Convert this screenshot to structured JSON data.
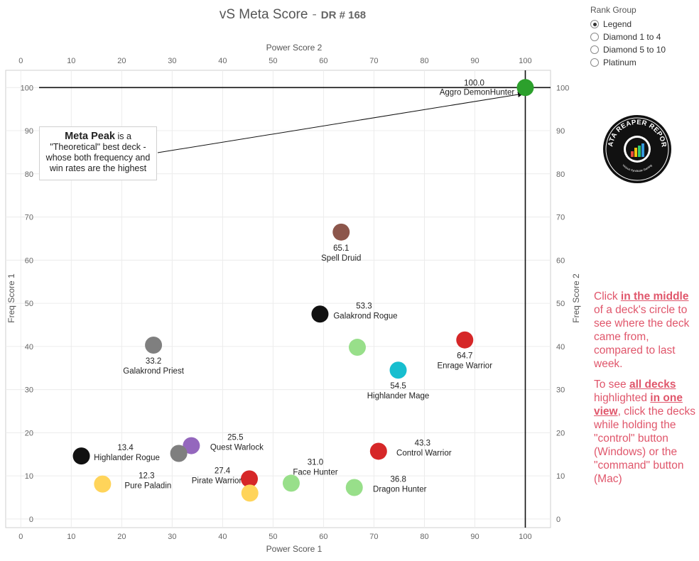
{
  "title": {
    "main": "vS Meta Score",
    "separator": "-",
    "sub": "DR # 168"
  },
  "filter": {
    "title": "Rank Group",
    "options": [
      "Legend",
      "Diamond 1 to 4",
      "Diamond 5 to 10",
      "Platinum"
    ],
    "selected": "Legend"
  },
  "annotation": {
    "strong": "Meta Peak",
    "text1": " is a",
    "text2": "\"Theoretical\" best deck -",
    "text3": "whose both frequency and",
    "text4": "win rates are the highest"
  },
  "logo": {
    "text_top": "DATA REAPER REPORT",
    "text_bottom": "Vicious Syndicate Gaming"
  },
  "instructions": {
    "p1_a": "Click ",
    "p1_b": "in the middle",
    "p1_c": " of a deck's circle to see where the deck came from, compared to last week.",
    "p2_a": "To see ",
    "p2_b": "all decks",
    "p2_c": " highlighted ",
    "p2_d": "in one view",
    "p2_e": ", click the decks while holding the \"control\" button (Windows) or the \"command\" button (Mac)"
  },
  "chart_data": {
    "type": "scatter",
    "title": "vS Meta Score - DR # 168",
    "xlabel": "Power Score 1",
    "x2label": "Power Score 2",
    "ylabel": "Freq Score 1",
    "y2label": "Freq Score 2",
    "xlim": [
      -3,
      105
    ],
    "ylim": [
      -2,
      104
    ],
    "xticks": [
      0,
      10,
      20,
      30,
      40,
      50,
      60,
      70,
      80,
      90,
      100
    ],
    "yticks": [
      0,
      10,
      20,
      30,
      40,
      50,
      60,
      70,
      80,
      90,
      100
    ],
    "grid": true,
    "reference_lines": {
      "x": 100,
      "y": 100
    },
    "points": [
      {
        "name": "Aggro DemonHunter",
        "score": "100.0",
        "x": 100,
        "y": 100,
        "color": "#2ca02c",
        "label": true,
        "label_pos": "upper-left"
      },
      {
        "name": "Spell Druid",
        "score": "65.1",
        "x": 63.5,
        "y": 66.5,
        "color": "#8c564b",
        "label": true,
        "label_pos": "below"
      },
      {
        "name": "Galakrond Rogue",
        "score": "53.3",
        "x": 59.3,
        "y": 47.5,
        "color": "#111111",
        "label": true,
        "label_pos": "right"
      },
      {
        "name": "Enrage Warrior",
        "score": "64.7",
        "x": 88,
        "y": 41.5,
        "color": "#d62728",
        "label": true,
        "label_pos": "below"
      },
      {
        "name": "Galakrond Priest",
        "score": "33.2",
        "x": 26.3,
        "y": 40.3,
        "color": "#7f7f7f",
        "label": true,
        "label_pos": "below"
      },
      {
        "name": "",
        "score": "",
        "x": 66.7,
        "y": 39.8,
        "color": "#98df8a",
        "label": false
      },
      {
        "name": "Highlander Mage",
        "score": "54.5",
        "x": 74.8,
        "y": 34.5,
        "color": "#17becf",
        "label": true,
        "label_pos": "below"
      },
      {
        "name": "Quest Warlock",
        "score": "25.5",
        "x": 33.8,
        "y": 17,
        "color": "#9467bd",
        "label": true,
        "label_pos": "right"
      },
      {
        "name": "",
        "score": "",
        "x": 31.3,
        "y": 15.2,
        "color": "#7f7f7f",
        "label": false
      },
      {
        "name": "Highlander Rogue",
        "score": "13.4",
        "x": 12,
        "y": 14.6,
        "color": "#111111",
        "label": true,
        "label_pos": "right"
      },
      {
        "name": "Control Warrior",
        "score": "43.3",
        "x": 70.9,
        "y": 15.7,
        "color": "#d62728",
        "label": true,
        "label_pos": "right"
      },
      {
        "name": "Pirate Warrior",
        "score": "27.4",
        "x": 45.3,
        "y": 9.3,
        "color": "#d62728",
        "label": true,
        "label_pos": "left"
      },
      {
        "name": "Face Hunter",
        "score": "31.0",
        "x": 53.6,
        "y": 8.3,
        "color": "#98df8a",
        "label": true,
        "label_pos": "above"
      },
      {
        "name": "Dragon Hunter",
        "score": "36.8",
        "x": 66.1,
        "y": 7.3,
        "color": "#98df8a",
        "label": true,
        "label_pos": "right"
      },
      {
        "name": "Pure Paladin",
        "score": "12.3",
        "x": 16.2,
        "y": 8.1,
        "color": "#ffd45a",
        "label": true,
        "label_pos": "right"
      },
      {
        "name": "",
        "score": "",
        "x": 45.4,
        "y": 6,
        "color": "#ffd45a",
        "label": false
      }
    ]
  }
}
